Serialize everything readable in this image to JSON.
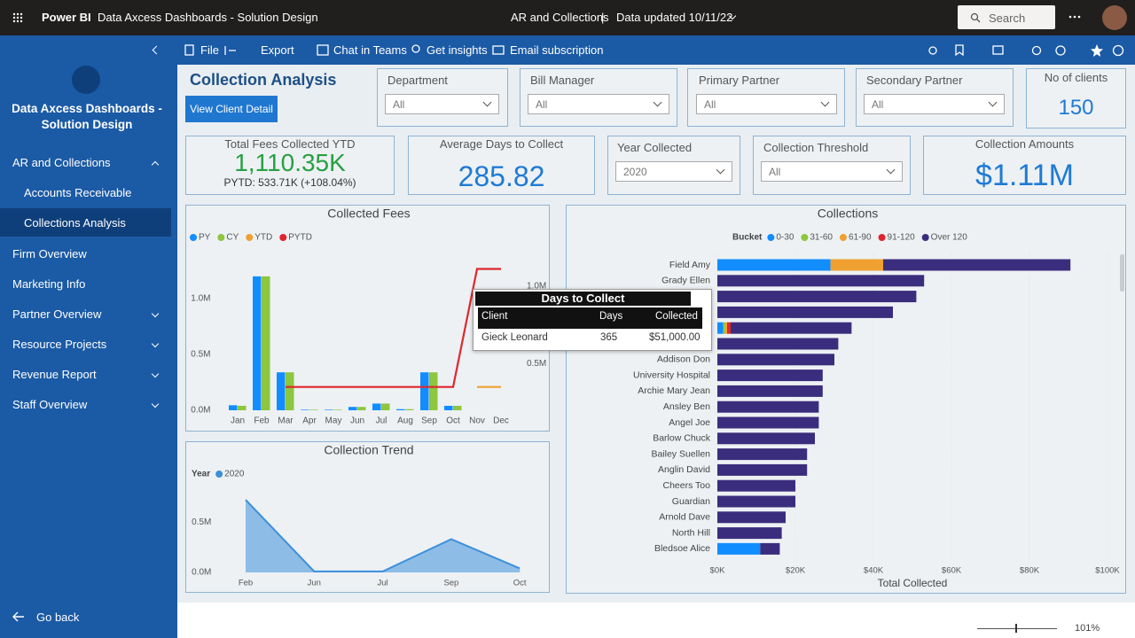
{
  "header": {
    "app": "Power BI",
    "report": "Data Axcess Dashboards - Solution Design",
    "page": "AR and Collections",
    "separator": "|",
    "updated": "Data updated 10/11/22",
    "search": "Search"
  },
  "toolbar": [
    "File",
    "Export",
    "Chat in Teams",
    "Get insights",
    "Email subscription"
  ],
  "sidebar": {
    "title": "Data Axcess Dashboards - Solution Design",
    "items": [
      "AR and Collections",
      "Accounts Receivable",
      "Collections Analysis",
      "Firm Overview",
      "Marketing Info",
      "Partner Overview",
      "Resource Projects",
      "Revenue Report",
      "Staff Overview"
    ],
    "back": "Go back"
  },
  "report": {
    "title": "Collection Analysis",
    "button": "View Client Detail",
    "slicers": [
      {
        "label": "Department",
        "value": "All"
      },
      {
        "label": "Bill Manager",
        "value": "All"
      },
      {
        "label": "Primary Partner",
        "value": "All"
      },
      {
        "label": "Secondary Partner",
        "value": "All"
      },
      {
        "label": "Year Collected",
        "value": "2020"
      },
      {
        "label": "Collection Threshold",
        "value": "All"
      }
    ],
    "cards": [
      {
        "label": "No of clients",
        "value": "150"
      },
      {
        "label": "Total Fees Collected YTD",
        "value": "1,110.35K",
        "sub": "PYTD: 533.71K (+108.04%)"
      },
      {
        "label": "Average Days to Collect",
        "value": "285.82"
      },
      {
        "label": "Collection Amounts",
        "value": "$1.11M"
      }
    ]
  },
  "tooltip": {
    "title": "Days to Collect",
    "columns": [
      "Client",
      "Days",
      "Collected"
    ],
    "row": [
      "Gieck Leonard",
      "365",
      "$51,000.00"
    ]
  },
  "zoom": "101%",
  "chart_data": [
    {
      "type": "bar",
      "title": "Collected Fees",
      "categories": [
        "Jan",
        "Feb",
        "Mar",
        "Apr",
        "May",
        "Jun",
        "Jul",
        "Aug",
        "Sep",
        "Oct",
        "Nov",
        "Dec"
      ],
      "series": [
        {
          "name": "PY",
          "color": "#118DFF",
          "values": [
            45000,
            1200000,
            340000,
            5000,
            5000,
            30000,
            60000,
            10000,
            340000,
            40000,
            null,
            null
          ]
        },
        {
          "name": "CY",
          "color": "#8DC63F",
          "values": [
            40000,
            1200000,
            340000,
            5000,
            5000,
            30000,
            60000,
            10000,
            340000,
            40000,
            null,
            null
          ]
        },
        {
          "name": "YTD",
          "color": "#F0A030",
          "axis": "y2",
          "values": [
            null,
            null,
            null,
            null,
            null,
            null,
            null,
            null,
            null,
            null,
            350000,
            350000
          ]
        },
        {
          "name": "PYTD",
          "color": "#E0262C",
          "axis": "y2",
          "values": [
            null,
            null,
            350000,
            350000,
            350000,
            350000,
            350000,
            350000,
            350000,
            350000,
            1110000,
            1110000
          ]
        }
      ],
      "ylim": [
        0,
        1350000
      ],
      "yticks": [
        {
          "value": 0,
          "label": "0.0M"
        },
        {
          "value": 500000,
          "label": "0.5M"
        },
        {
          "value": 1000000,
          "label": "1.0M"
        }
      ],
      "y2lim": [
        200000,
        1170000
      ],
      "y2ticks": [
        {
          "value": 500000,
          "label": "0.5M"
        },
        {
          "value": 1000000,
          "label": "1.0M"
        }
      ],
      "grid": false
    },
    {
      "type": "area",
      "title": "Collection Trend",
      "legend_title": "Year",
      "categories": [
        "Feb",
        "Jun",
        "Jul",
        "Sep",
        "Oct"
      ],
      "series": [
        {
          "name": "2020",
          "color": "#3E8FDA",
          "values": [
            720000,
            10000,
            10000,
            330000,
            40000
          ]
        }
      ],
      "ylim": [
        0,
        800000
      ],
      "yticks": [
        {
          "value": 0,
          "label": "0.0M"
        },
        {
          "value": 500000,
          "label": "0.5M"
        }
      ],
      "grid": false
    },
    {
      "type": "stacked_bar",
      "title": "Collections",
      "legend_title": "Bucket",
      "x_label": "Total Collected",
      "categories": [
        "Field Amy",
        "Grady Ellen",
        null,
        null,
        null,
        null,
        "Addison Don",
        "University Hospital",
        "Archie Mary Jean",
        "Ansley Ben",
        "Angel Joe",
        "Barlow Chuck",
        "Bailey Suellen",
        "Anglin David",
        "Cheers Too",
        "Guardian",
        "Arnold Dave",
        "North Hill",
        "Bledsoe Alice"
      ],
      "series": [
        {
          "name": "0-30",
          "color": "#118DFF",
          "values": [
            29000,
            null,
            null,
            null,
            1500,
            null,
            null,
            null,
            null,
            null,
            null,
            null,
            null,
            null,
            null,
            null,
            null,
            null,
            11000
          ]
        },
        {
          "name": "31-60",
          "color": "#8DC63F",
          "values": [
            null,
            null,
            null,
            null,
            500,
            null,
            null,
            null,
            null,
            null,
            null,
            null,
            null,
            null,
            null,
            null,
            null,
            null,
            null
          ]
        },
        {
          "name": "61-90",
          "color": "#F0A030",
          "values": [
            13500,
            null,
            null,
            null,
            500,
            null,
            null,
            null,
            null,
            null,
            null,
            null,
            null,
            null,
            null,
            null,
            null,
            null,
            null
          ]
        },
        {
          "name": "91-120",
          "color": "#E0262C",
          "values": [
            null,
            null,
            null,
            null,
            900,
            null,
            null,
            null,
            null,
            null,
            null,
            null,
            null,
            null,
            null,
            null,
            null,
            null,
            null
          ]
        },
        {
          "name": "Over 120",
          "color": "#3B2D7D",
          "values": [
            48000,
            53000,
            51000,
            45000,
            31000,
            31000,
            30000,
            27000,
            27000,
            26000,
            26000,
            25000,
            23000,
            23000,
            20000,
            20000,
            17500,
            16500,
            5000
          ]
        }
      ],
      "xlim": [
        0,
        100000
      ],
      "xticks": [
        {
          "value": 0,
          "label": "$0K"
        },
        {
          "value": 20000,
          "label": "$20K"
        },
        {
          "value": 40000,
          "label": "$40K"
        },
        {
          "value": 60000,
          "label": "$60K"
        },
        {
          "value": 80000,
          "label": "$80K"
        },
        {
          "value": 100000,
          "label": "$100K"
        }
      ],
      "grid": true
    }
  ]
}
